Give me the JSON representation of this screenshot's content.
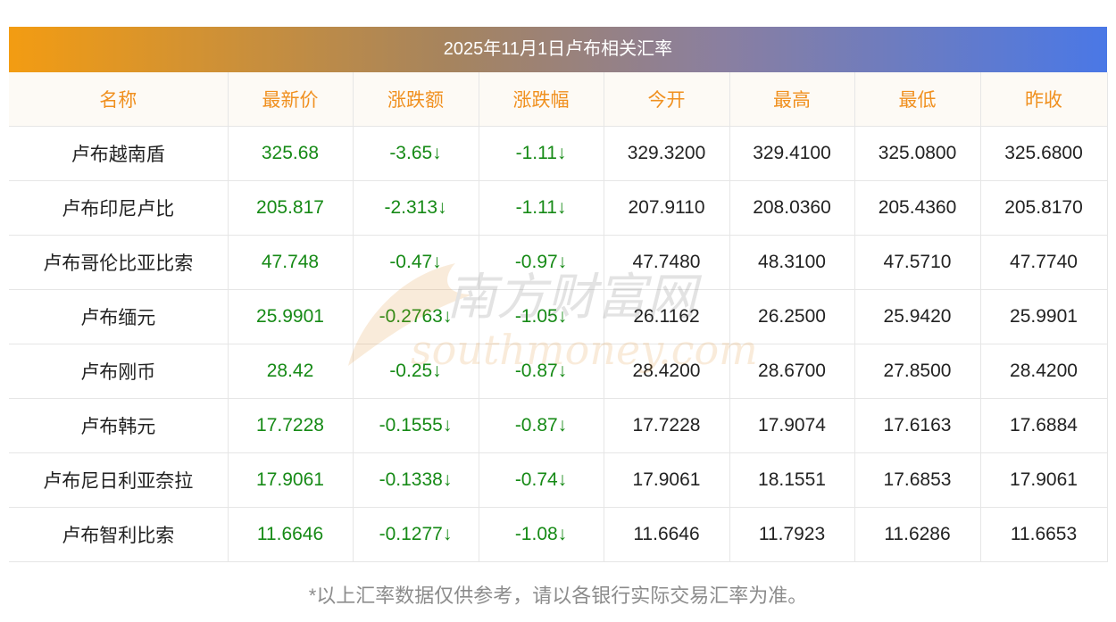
{
  "title": "2025年11月1日卢布相关汇率",
  "headers": [
    "名称",
    "最新价",
    "涨跌额",
    "涨跌幅",
    "今开",
    "最高",
    "最低",
    "昨收"
  ],
  "rows": [
    {
      "name": "卢布越南盾",
      "latest": "325.68",
      "change": "-3.65↓",
      "pct": "-1.11↓",
      "open": "329.3200",
      "high": "329.4100",
      "low": "325.0800",
      "prev": "325.6800"
    },
    {
      "name": "卢布印尼卢比",
      "latest": "205.817",
      "change": "-2.313↓",
      "pct": "-1.11↓",
      "open": "207.9110",
      "high": "208.0360",
      "low": "205.4360",
      "prev": "205.8170"
    },
    {
      "name": "卢布哥伦比亚比索",
      "latest": "47.748",
      "change": "-0.47↓",
      "pct": "-0.97↓",
      "open": "47.7480",
      "high": "48.3100",
      "low": "47.5710",
      "prev": "47.7740"
    },
    {
      "name": "卢布缅元",
      "latest": "25.9901",
      "change": "-0.2763↓",
      "pct": "-1.05↓",
      "open": "26.1162",
      "high": "26.2500",
      "low": "25.9420",
      "prev": "25.9901"
    },
    {
      "name": "卢布刚币",
      "latest": "28.42",
      "change": "-0.25↓",
      "pct": "-0.87↓",
      "open": "28.4200",
      "high": "28.6700",
      "low": "27.8500",
      "prev": "28.4200"
    },
    {
      "name": "卢布韩元",
      "latest": "17.7228",
      "change": "-0.1555↓",
      "pct": "-0.87↓",
      "open": "17.7228",
      "high": "17.9074",
      "low": "17.6163",
      "prev": "17.6884"
    },
    {
      "name": "卢布尼日利亚奈拉",
      "latest": "17.9061",
      "change": "-0.1338↓",
      "pct": "-0.74↓",
      "open": "17.9061",
      "high": "18.1551",
      "low": "17.6853",
      "prev": "17.9061"
    },
    {
      "name": "卢布智利比索",
      "latest": "11.6646",
      "change": "-0.1277↓",
      "pct": "-1.08↓",
      "open": "11.6646",
      "high": "11.7923",
      "low": "11.6286",
      "prev": "11.6653"
    }
  ],
  "watermark": {
    "cn": "南方财富网",
    "en": "southmoney.com"
  },
  "footnote": "*以上汇率数据仅供参考，请以各银行实际交易汇率为准。",
  "colors": {
    "header_text": "#f0901f",
    "change_green": "#168a16",
    "title_from": "#f39c12",
    "title_to": "#4a78e6"
  }
}
